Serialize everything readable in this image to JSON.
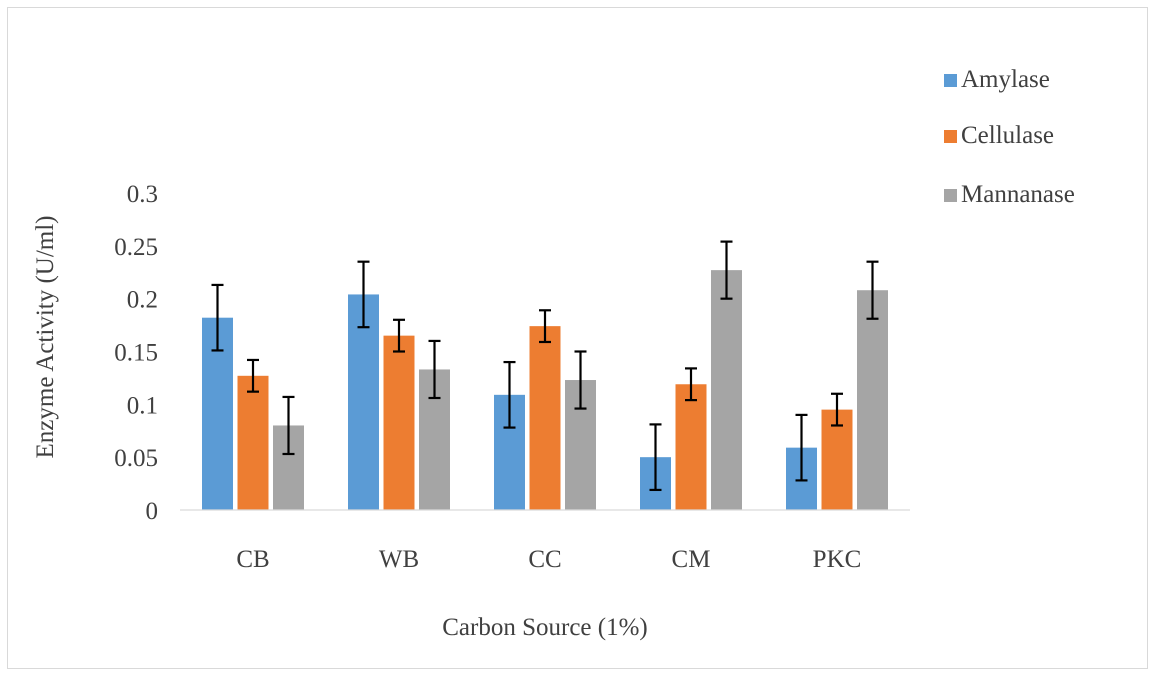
{
  "chart_data": {
    "type": "bar",
    "xlabel": "Carbon Source (1%)",
    "ylabel": "Enzyme Activity (U/ml)",
    "categories": [
      "CB",
      "WB",
      "CC",
      "CM",
      "PKC"
    ],
    "ylim": [
      0,
      0.3
    ],
    "yticks": [
      "0",
      "0.05",
      "0.1",
      "0.15",
      "0.2",
      "0.25",
      "0.3"
    ],
    "ytick_values": [
      0,
      0.05,
      0.1,
      0.15,
      0.2,
      0.25,
      0.3
    ],
    "grid": false,
    "legend_position": "right",
    "series": [
      {
        "name": "Amylase",
        "color": "#5b9bd5",
        "values": [
          0.182,
          0.204,
          0.109,
          0.05,
          0.059
        ],
        "errors": [
          0.031,
          0.031,
          0.031,
          0.031,
          0.031
        ]
      },
      {
        "name": "Cellulase",
        "color": "#ed7d31",
        "values": [
          0.127,
          0.165,
          0.174,
          0.119,
          0.095
        ],
        "errors": [
          0.015,
          0.015,
          0.015,
          0.015,
          0.015
        ]
      },
      {
        "name": "Mannanase",
        "color": "#a5a5a5",
        "values": [
          0.08,
          0.133,
          0.123,
          0.227,
          0.208
        ],
        "errors": [
          0.027,
          0.027,
          0.027,
          0.027,
          0.027
        ]
      }
    ]
  }
}
